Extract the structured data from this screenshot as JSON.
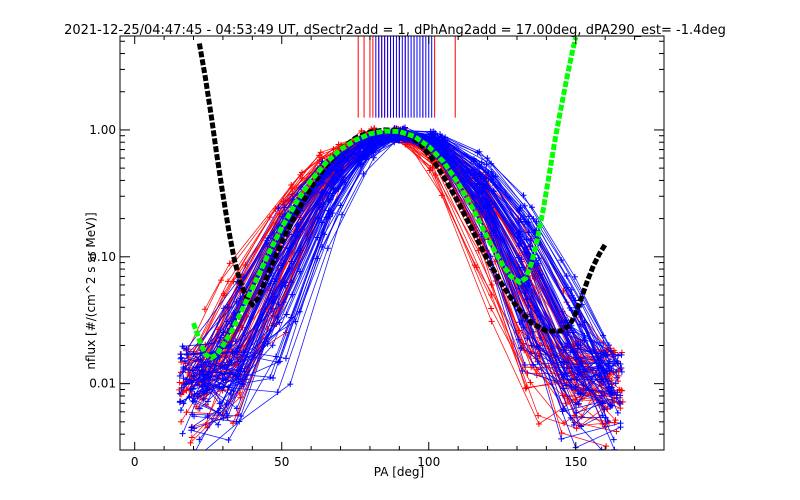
{
  "chart_data": {
    "type": "line",
    "title": "2021-12-25/04:47:45 - 04:53:49 UT, dSectr2add = 1, dPhAng2add = 17.00deg, dPA290_est=  -1.4deg",
    "xlabel": "PA [deg]",
    "ylabel": "nflux [#/(cm^2 s sr MeV)]",
    "xlim": [
      -5,
      180
    ],
    "ylim": [
      0.003,
      5.5
    ],
    "yscale": "log",
    "x_ticks": [
      0,
      50,
      100,
      150
    ],
    "x_tick_labels": [
      "0",
      "50",
      "100",
      "150"
    ],
    "y_ticks": [
      0.01,
      0.1,
      1.0
    ],
    "y_tick_labels": [
      "0.01",
      "0.10",
      "1.00"
    ],
    "grid": false,
    "colors": {
      "red": "#ff0000",
      "blue": "#0000ff",
      "green": "#00ff00",
      "black": "#000000"
    },
    "vertical_markers": {
      "red_x": [
        76,
        78,
        80,
        81,
        83,
        84,
        85,
        86,
        87,
        88,
        90,
        92,
        95,
        98,
        102,
        109
      ],
      "blue_x": [
        82,
        83,
        84,
        85,
        86,
        87,
        88,
        89,
        90,
        91,
        92,
        93,
        94,
        95,
        96,
        97,
        98,
        99,
        100,
        101
      ]
    },
    "series": [
      {
        "color": "black",
        "style": "thick-dashed",
        "x": [
          22,
          24,
          26,
          28,
          30,
          32,
          34,
          36,
          38,
          40,
          42,
          45,
          50,
          55,
          60,
          65,
          70,
          75,
          80,
          85,
          89,
          93,
          97,
          101,
          105,
          110,
          115,
          120,
          125,
          130,
          135,
          140,
          145,
          148,
          150,
          152,
          154,
          156,
          158,
          160
        ],
        "y": [
          4.8,
          2.6,
          1.3,
          0.62,
          0.31,
          0.16,
          0.092,
          0.062,
          0.048,
          0.042,
          0.047,
          0.07,
          0.13,
          0.22,
          0.35,
          0.52,
          0.7,
          0.86,
          0.96,
          1.0,
          0.99,
          0.92,
          0.78,
          0.6,
          0.43,
          0.27,
          0.16,
          0.095,
          0.06,
          0.04,
          0.03,
          0.026,
          0.026,
          0.029,
          0.036,
          0.048,
          0.065,
          0.085,
          0.105,
          0.125
        ]
      },
      {
        "color": "green",
        "style": "thick-dashed",
        "x": [
          20,
          22,
          24,
          26,
          28,
          30,
          33,
          36,
          40,
          45,
          50,
          55,
          60,
          65,
          70,
          75,
          80,
          85,
          90,
          95,
          100,
          105,
          110,
          115,
          120,
          125,
          128,
          131,
          133,
          135,
          137,
          139,
          141,
          143,
          145,
          147,
          149,
          150
        ],
        "y": [
          0.03,
          0.022,
          0.017,
          0.016,
          0.017,
          0.02,
          0.026,
          0.036,
          0.056,
          0.1,
          0.17,
          0.27,
          0.4,
          0.55,
          0.7,
          0.83,
          0.93,
          0.98,
          0.97,
          0.89,
          0.74,
          0.56,
          0.38,
          0.24,
          0.14,
          0.087,
          0.07,
          0.063,
          0.068,
          0.09,
          0.14,
          0.24,
          0.45,
          0.85,
          1.5,
          2.6,
          4.3,
          5.4
        ]
      }
    ]
  }
}
